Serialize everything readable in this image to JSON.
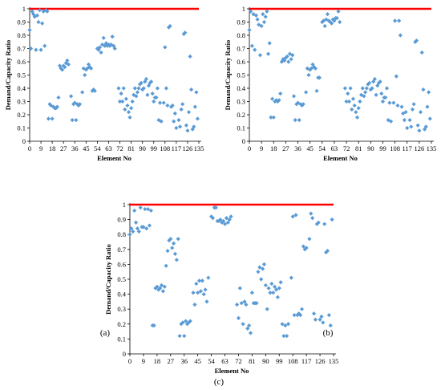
{
  "figure": {
    "panel_labels": [
      "(a)",
      "(b)",
      "(c)"
    ]
  },
  "colors": {
    "points": "#5B9BD5",
    "limit_line": "#FF0000",
    "axis": "#000000"
  },
  "chart_data": [
    {
      "type": "scatter",
      "panel": "(a)",
      "xlabel": "Element No",
      "ylabel": "Demand/Capacity Ratio",
      "xlim": [
        0,
        135
      ],
      "ylim": [
        0,
        1
      ],
      "xticks": [
        "0",
        "9",
        "18",
        "27",
        "36",
        "45",
        "54",
        "63",
        "72",
        "81",
        "90",
        "99",
        "108",
        "117",
        "126",
        "135"
      ],
      "yticks": [
        "0",
        "0.1",
        "0.2",
        "0.3",
        "0.4",
        "0.5",
        "0.6",
        "0.7",
        "0.8",
        "0.9",
        "1"
      ],
      "limit_line": 1.0,
      "series": [
        {
          "marker": "diamond",
          "x": [
            0,
            1,
            2,
            3,
            4,
            5,
            6,
            7,
            8,
            9,
            10,
            11,
            12,
            13,
            14,
            15,
            16,
            17,
            18,
            19,
            20,
            21,
            22,
            23,
            24,
            25,
            26,
            27,
            28,
            29,
            30,
            31,
            33,
            34,
            35,
            36,
            37,
            38,
            39,
            40,
            42,
            43,
            44,
            45,
            46,
            47,
            48,
            49,
            50,
            51,
            52,
            54,
            55,
            56,
            57,
            58,
            59,
            60,
            61,
            62,
            63,
            64,
            65,
            66,
            67,
            68,
            71,
            72,
            73,
            74,
            75,
            76,
            77,
            78,
            79,
            80,
            81,
            82,
            83,
            84,
            85,
            86,
            87,
            88,
            89,
            90,
            91,
            92,
            93,
            94,
            95,
            96,
            97,
            98,
            99,
            100,
            101,
            102,
            103,
            104,
            105,
            107,
            108,
            109,
            110,
            111,
            112,
            113,
            114,
            115,
            116,
            117,
            119,
            120,
            121,
            122,
            123,
            124,
            125,
            126,
            127,
            128,
            129,
            130,
            131,
            132,
            133,
            134
          ],
          "y": [
            0.84,
            0.7,
            0.98,
            0.96,
            0.94,
            0.69,
            0.95,
            0.9,
            0.99,
            0.69,
            0.89,
            0.98,
            0.72,
            0.99,
            0.98,
            0.17,
            0.28,
            0.27,
            0.17,
            0.26,
            0.25,
            0.25,
            0.26,
            0.33,
            0.57,
            0.55,
            0.54,
            0.57,
            0.56,
            0.59,
            0.61,
            0.58,
            0.34,
            0.16,
            0.28,
            0.29,
            0.16,
            0.28,
            0.27,
            0.28,
            0.37,
            0.55,
            0.5,
            0.54,
            0.55,
            0.58,
            0.56,
            0.55,
            0.38,
            0.39,
            0.38,
            0.7,
            0.69,
            0.71,
            0.67,
            0.73,
            0.78,
            0.72,
            0.74,
            0.72,
            0.73,
            0.72,
            0.73,
            0.79,
            0.72,
            0.7,
            0.4,
            0.3,
            0.36,
            0.3,
            0.4,
            0.24,
            0.32,
            0.27,
            0.22,
            0.18,
            0.25,
            0.3,
            0.35,
            0.4,
            0.34,
            0.37,
            0.4,
            0.43,
            0.44,
            0.39,
            0.4,
            0.45,
            0.47,
            0.35,
            0.42,
            0.44,
            0.45,
            0.36,
            0.3,
            0.33,
            0.33,
            0.4,
            0.16,
            0.29,
            0.15,
            0.29,
            0.71,
            0.4,
            0.27,
            0.86,
            0.87,
            0.26,
            0.27,
            0.15,
            0.21,
            0.1,
            0.16,
            0.11,
            0.24,
            0.28,
            0.81,
            0.82,
            0.12,
            0.08,
            0.22,
            0.64,
            0.39,
            0.09,
            0.11,
            0.26,
            0.37,
            0.17
          ]
        }
      ]
    },
    {
      "type": "scatter",
      "panel": "(b)",
      "xlabel": "Element No",
      "ylabel": "Demand/Capacity Ratio",
      "xlim": [
        0,
        135
      ],
      "ylim": [
        0,
        1
      ],
      "xticks": [
        "0",
        "9",
        "18",
        "27",
        "36",
        "45",
        "54",
        "63",
        "72",
        "81",
        "90",
        "99",
        "108",
        "117",
        "126",
        "135"
      ],
      "yticks": [
        "0",
        "0.1",
        "0.2",
        "0.3",
        "0.4",
        "0.5",
        "0.6",
        "0.7",
        "0.8",
        "0.9",
        "1"
      ],
      "limit_line": 1.0,
      "series": [
        {
          "marker": "diamond",
          "x": [
            0,
            1,
            2,
            3,
            4,
            5,
            6,
            7,
            8,
            9,
            10,
            11,
            12,
            13,
            14,
            15,
            16,
            17,
            18,
            19,
            20,
            21,
            22,
            23,
            24,
            25,
            26,
            27,
            28,
            29,
            30,
            31,
            32,
            33,
            34,
            35,
            36,
            37,
            38,
            39,
            40,
            42,
            43,
            44,
            45,
            46,
            47,
            48,
            49,
            50,
            51,
            52,
            54,
            55,
            56,
            57,
            58,
            59,
            60,
            61,
            62,
            63,
            64,
            65,
            66,
            67,
            71,
            72,
            73,
            74,
            75,
            76,
            77,
            78,
            79,
            80,
            81,
            82,
            83,
            84,
            85,
            86,
            87,
            88,
            89,
            90,
            91,
            92,
            93,
            94,
            95,
            96,
            97,
            98,
            99,
            100,
            101,
            102,
            103,
            104,
            105,
            107,
            108,
            109,
            110,
            111,
            112,
            113,
            114,
            115,
            116,
            117,
            119,
            120,
            121,
            122,
            123,
            124,
            125,
            126,
            127,
            128,
            129,
            130,
            131,
            132,
            133,
            134
          ],
          "y": [
            0.84,
            0.98,
            0.72,
            0.96,
            0.69,
            0.95,
            0.92,
            0.88,
            0.65,
            0.87,
            0.96,
            0.9,
            0.94,
            0.98,
            0.66,
            0.74,
            0.18,
            0.32,
            0.18,
            0.3,
            0.31,
            0.3,
            0.31,
            0.36,
            0.6,
            0.62,
            0.61,
            0.63,
            0.64,
            0.6,
            0.66,
            0.62,
            0.65,
            0.34,
            0.16,
            0.28,
            0.29,
            0.16,
            0.28,
            0.27,
            0.28,
            0.37,
            0.55,
            0.5,
            0.54,
            0.55,
            0.58,
            0.56,
            0.55,
            0.38,
            0.48,
            0.48,
            0.9,
            0.91,
            0.87,
            0.92,
            0.96,
            0.91,
            0.9,
            0.89,
            0.92,
            0.91,
            0.93,
            0.93,
            0.98,
            0.9,
            0.4,
            0.3,
            0.36,
            0.3,
            0.4,
            0.24,
            0.32,
            0.27,
            0.22,
            0.18,
            0.25,
            0.3,
            0.35,
            0.4,
            0.34,
            0.37,
            0.4,
            0.43,
            0.44,
            0.39,
            0.4,
            0.45,
            0.47,
            0.35,
            0.42,
            0.44,
            0.45,
            0.36,
            0.3,
            0.33,
            0.33,
            0.4,
            0.16,
            0.29,
            0.15,
            0.29,
            0.91,
            0.49,
            0.27,
            0.91,
            0.8,
            0.26,
            0.21,
            0.16,
            0.22,
            0.1,
            0.16,
            0.11,
            0.24,
            0.28,
            0.75,
            0.76,
            0.12,
            0.08,
            0.22,
            0.67,
            0.39,
            0.09,
            0.11,
            0.26,
            0.37,
            0.17
          ]
        }
      ]
    },
    {
      "type": "scatter",
      "panel": "(c)",
      "xlabel": "Element No",
      "ylabel": "Demand/Capacity Ratio",
      "xlim": [
        0,
        135
      ],
      "ylim": [
        0,
        1
      ],
      "xticks": [
        "0",
        "9",
        "18",
        "27",
        "36",
        "45",
        "54",
        "63",
        "72",
        "81",
        "90",
        "99",
        "108",
        "117",
        "126",
        "135"
      ],
      "yticks": [
        "0",
        "0.1",
        "0.2",
        "0.3",
        "0.4",
        "0.5",
        "0.6",
        "0.7",
        "0.8",
        "0.9",
        "1"
      ],
      "limit_line": 1.0,
      "series": [
        {
          "marker": "diamond",
          "x": [
            0,
            1,
            2,
            3,
            4,
            5,
            6,
            7,
            8,
            9,
            10,
            11,
            12,
            13,
            14,
            15,
            16,
            17,
            18,
            19,
            20,
            21,
            22,
            23,
            24,
            25,
            26,
            27,
            28,
            29,
            30,
            31,
            32,
            33,
            34,
            35,
            36,
            37,
            38,
            39,
            40,
            42,
            43,
            44,
            45,
            46,
            47,
            48,
            49,
            50,
            51,
            52,
            54,
            55,
            56,
            57,
            58,
            59,
            60,
            61,
            62,
            63,
            64,
            65,
            66,
            67,
            71,
            72,
            73,
            74,
            75,
            76,
            77,
            78,
            79,
            80,
            81,
            82,
            83,
            84,
            85,
            86,
            87,
            88,
            89,
            90,
            91,
            92,
            93,
            94,
            95,
            96,
            97,
            98,
            99,
            100,
            101,
            102,
            103,
            104,
            105,
            107,
            108,
            109,
            110,
            111,
            112,
            113,
            114,
            115,
            116,
            117,
            119,
            120,
            121,
            122,
            123,
            124,
            125,
            126,
            127,
            128,
            129,
            130,
            131,
            132,
            133,
            134
          ],
          "y": [
            0.8,
            0.84,
            0.82,
            0.96,
            0.88,
            0.84,
            0.82,
            0.98,
            0.85,
            0.85,
            0.97,
            0.84,
            0.97,
            0.86,
            0.96,
            0.19,
            0.19,
            0.44,
            0.45,
            0.43,
            0.44,
            0.46,
            0.42,
            0.45,
            0.59,
            0.69,
            0.76,
            0.77,
            0.71,
            0.74,
            0.67,
            0.63,
            0.77,
            0.12,
            0.2,
            0.21,
            0.12,
            0.22,
            0.2,
            0.21,
            0.22,
            0.41,
            0.33,
            0.47,
            0.41,
            0.49,
            0.42,
            0.49,
            0.4,
            0.43,
            0.35,
            0.51,
            0.92,
            0.91,
            0.98,
            0.98,
            0.89,
            0.89,
            0.9,
            0.88,
            0.89,
            0.87,
            0.91,
            0.88,
            0.9,
            0.92,
            0.33,
            0.24,
            0.44,
            0.34,
            0.2,
            0.35,
            0.33,
            0.17,
            0.19,
            0.14,
            0.41,
            0.34,
            0.34,
            0.34,
            0.55,
            0.58,
            0.5,
            0.57,
            0.6,
            0.46,
            0.3,
            0.44,
            0.41,
            0.47,
            0.41,
            0.45,
            0.43,
            0.38,
            0.44,
            0.48,
            0.2,
            0.12,
            0.19,
            0.12,
            0.2,
            0.51,
            0.92,
            0.26,
            0.93,
            0.26,
            0.27,
            0.26,
            0.3,
            0.72,
            0.7,
            0.71,
            0.77,
            0.94,
            0.91,
            0.27,
            0.23,
            0.87,
            0.88,
            0.23,
            0.25,
            0.21,
            0.87,
            0.68,
            0.69,
            0.26,
            0.19,
            0.9
          ]
        }
      ]
    }
  ]
}
